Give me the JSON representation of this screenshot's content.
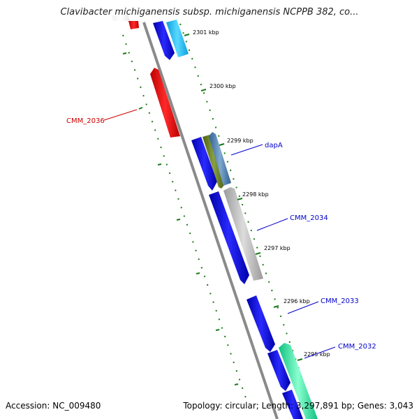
{
  "title": "Clavibacter michiganensis subsp. michiganensis NCPPB 382, co...",
  "footer": {
    "accession": "Accession: NC_009480",
    "summary": "Topology: circular; Length: 3,297,891 bp; Genes: 3,043"
  },
  "colors": {
    "forward_blue": "#0000ee",
    "light_blue": "#22b8ee",
    "red": "#ee0000",
    "olive": "#667a22",
    "steel": "#4a80b0",
    "gray": "#b0b0b0",
    "teal": "#22e8a0",
    "tick_green": "#1a7a1a",
    "label_blue": "#0000cc",
    "label_red": "#cc0000"
  },
  "ticks": [
    {
      "label": "2301 kbp"
    },
    {
      "label": "2300 kbp"
    },
    {
      "label": "2299 kbp"
    },
    {
      "label": "2298 kbp"
    },
    {
      "label": "2297 kbp"
    },
    {
      "label": "2296 kbp"
    },
    {
      "label": "2295 kbp"
    }
  ],
  "gene_labels": [
    {
      "name": "CMM_2036"
    },
    {
      "name": "dapA"
    },
    {
      "name": "CMM_2034"
    },
    {
      "name": "CMM_2033"
    },
    {
      "name": "CMM_2032"
    }
  ]
}
